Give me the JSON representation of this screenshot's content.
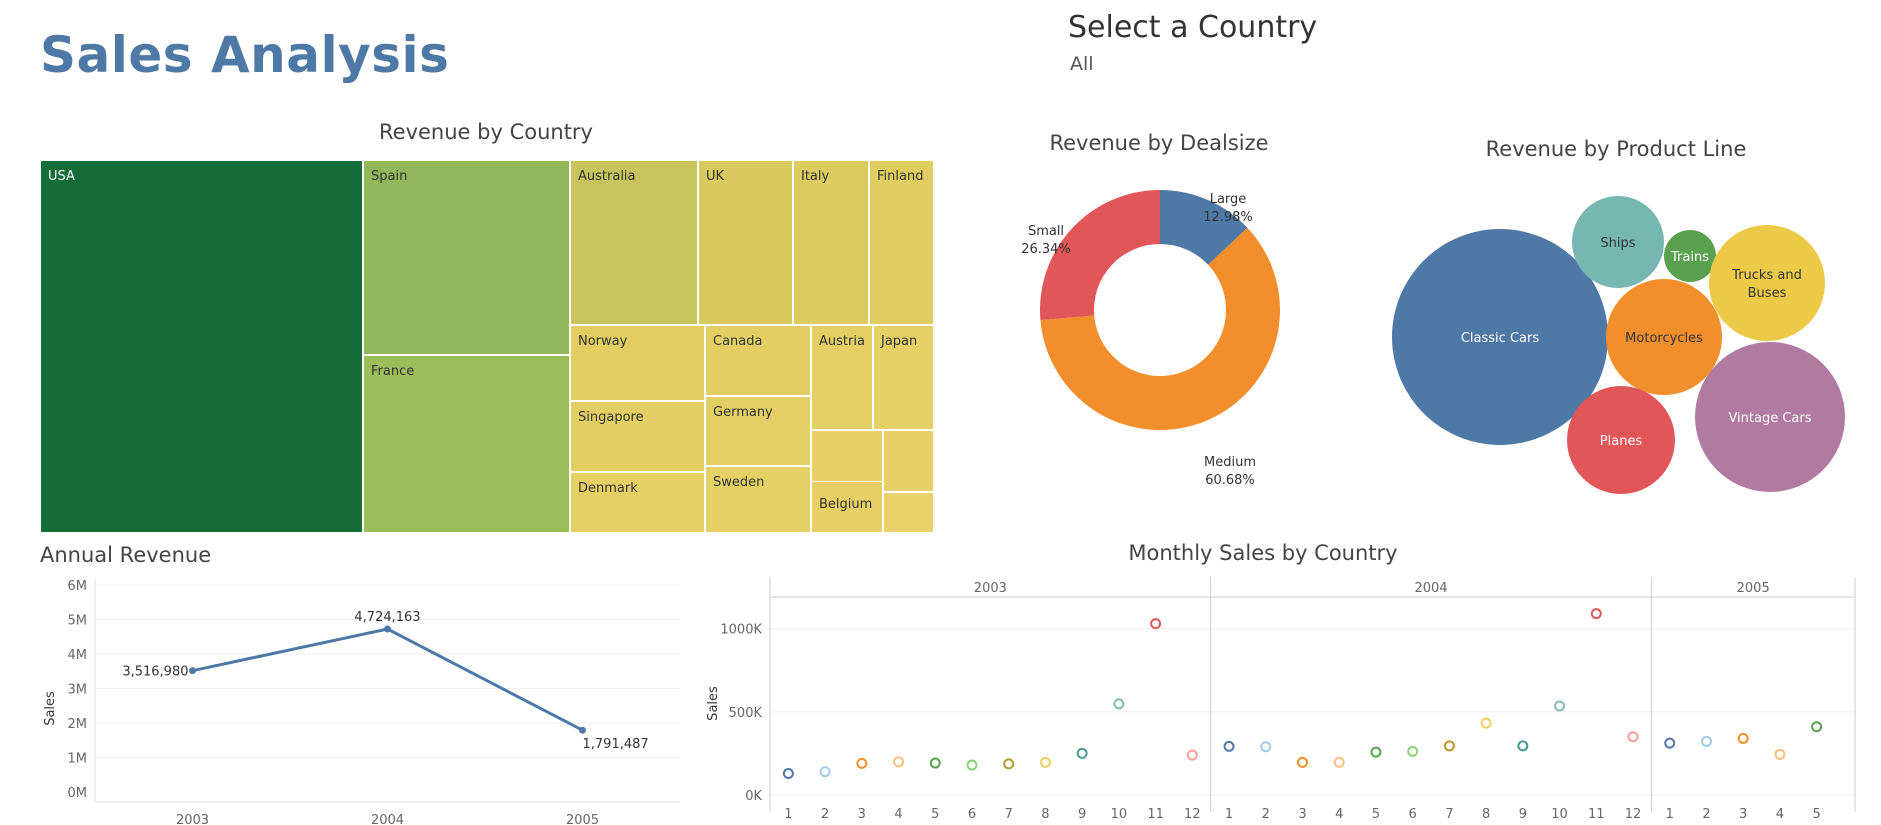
{
  "header": {
    "title": "Sales Analysis",
    "filter_label": "Select a Country",
    "filter_value": "All"
  },
  "colors": {
    "accent": "#4e79a7",
    "treemap_dark": "#146c38",
    "treemap_green": "#92b85a",
    "treemap_yellow": "#e1cc5e"
  },
  "chart_data": [
    {
      "type": "treemap",
      "title": "Revenue by Country",
      "items": [
        {
          "label": "USA",
          "color": "#146c38"
        },
        {
          "label": "Spain",
          "color": "#92b85b"
        },
        {
          "label": "France",
          "color": "#9cbe5a"
        },
        {
          "label": "Australia",
          "color": "#c7c45d"
        },
        {
          "label": "UK",
          "color": "#d7c95e"
        },
        {
          "label": "Italy",
          "color": "#dccb5f"
        },
        {
          "label": "Finland",
          "color": "#dfcd5f"
        },
        {
          "label": "Norway",
          "color": "#e1cd60"
        },
        {
          "label": "Canada",
          "color": "#e2ce62"
        },
        {
          "label": "Austria",
          "color": "#e3cf63"
        },
        {
          "label": "Japan",
          "color": "#e4d064"
        },
        {
          "label": "Singapore",
          "color": "#e2ce62"
        },
        {
          "label": "Germany",
          "color": "#e3cf63"
        },
        {
          "label": "Denmark",
          "color": "#e4d064"
        },
        {
          "label": "Sweden",
          "color": "#e5d065"
        },
        {
          "label": "Belgium",
          "color": "#e6d066"
        },
        {
          "label": "",
          "color": "#e7d168"
        },
        {
          "label": "",
          "color": "#e8d169"
        },
        {
          "label": "",
          "color": "#ead26b"
        }
      ]
    },
    {
      "type": "pie",
      "title": "Revenue by Dealsize",
      "slices": [
        {
          "label": "Large",
          "percent_text": "12.98%",
          "value": 12.98,
          "color": "#4e79a7"
        },
        {
          "label": "Medium",
          "percent_text": "60.68%",
          "value": 60.68,
          "color": "#f28e2b"
        },
        {
          "label": "Small",
          "percent_text": "26.34%",
          "value": 26.34,
          "color": "#e15759"
        }
      ]
    },
    {
      "type": "bubble",
      "title": "Revenue by Product Line",
      "items": [
        {
          "label": "Classic Cars",
          "color": "#4e79a7",
          "text_color": "#ffffff"
        },
        {
          "label": "Ships",
          "color": "#76b7b2",
          "text_color": "#333333"
        },
        {
          "label": "Trains",
          "color": "#59a14f",
          "text_color": "#ffffff"
        },
        {
          "label": "Trucks and",
          "label2": "Buses",
          "color": "#edc948",
          "text_color": "#333333"
        },
        {
          "label": "Motorcycles",
          "color": "#f28e2b",
          "text_color": "#333333"
        },
        {
          "label": "Planes",
          "color": "#e15759",
          "text_color": "#ffffff"
        },
        {
          "label": "Vintage Cars",
          "color": "#b07aa1",
          "text_color": "#ffffff"
        }
      ]
    },
    {
      "type": "line",
      "title": "Annual Revenue",
      "ylabel": "Sales",
      "x": [
        "2003",
        "2004",
        "2005"
      ],
      "values": [
        3516980,
        4724163,
        1791487
      ],
      "data_labels": [
        "3,516,980",
        "4,724,163",
        "1,791,487"
      ],
      "yticks": [
        "0M",
        "1M",
        "2M",
        "3M",
        "4M",
        "5M",
        "6M"
      ],
      "ylim": [
        0,
        6000000
      ],
      "grid": true,
      "color": "#4e79a7"
    },
    {
      "type": "scatter",
      "title": "Monthly Sales by Country",
      "ylabel": "Sales",
      "yticks": [
        "0K",
        "500K",
        "1000K"
      ],
      "ylim": [
        0,
        1100000
      ],
      "panels": [
        {
          "year": "2003",
          "months": [
            "1",
            "2",
            "3",
            "4",
            "5",
            "6",
            "7",
            "8",
            "9",
            "10",
            "11",
            "12"
          ],
          "values": [
            129000,
            140000,
            190000,
            200000,
            192000,
            180000,
            187000,
            196000,
            250000,
            548000,
            1030000,
            240000
          ]
        },
        {
          "year": "2004",
          "months": [
            "1",
            "2",
            "3",
            "4",
            "5",
            "6",
            "7",
            "8",
            "9",
            "10",
            "11",
            "12"
          ],
          "values": [
            292000,
            290000,
            196000,
            196000,
            258000,
            262000,
            295000,
            432000,
            295000,
            535000,
            1090000,
            350000
          ]
        },
        {
          "year": "2005",
          "months": [
            "1",
            "2",
            "3",
            "4",
            "5"
          ],
          "values": [
            312000,
            322000,
            340000,
            244000,
            410000
          ]
        }
      ],
      "month_colors": [
        "#4e79a7",
        "#a0cbe8",
        "#f28e2b",
        "#ffbe7d",
        "#59a14f",
        "#8cd17d",
        "#b6992d",
        "#f1ce63",
        "#499894",
        "#86bcb6",
        "#e15759",
        "#ff9d9a"
      ],
      "grid": true
    }
  ]
}
